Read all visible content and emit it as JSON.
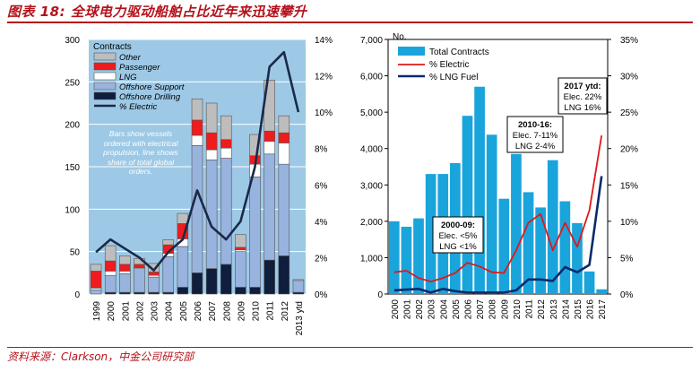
{
  "figure": {
    "title": "图表 18: 全球电力驱动船舶占比近年来迅速攀升",
    "source": "资料来源：Clarkson，中金公司研究部"
  },
  "colors": {
    "title_red": "#b5121b",
    "panel_blue": "#9dc9e6",
    "other": "#bdbdbd",
    "passenger": "#ee1c1c",
    "lng": "#ffffff",
    "offshore_support": "#98b3de",
    "offshore_drilling": "#0e1e3c",
    "electric_line": "#1a2a4a",
    "right_bar": "#1aa4dc",
    "right_electric": "#e01818",
    "right_lng": "#0a2a6a"
  },
  "chart_data": [
    {
      "type": "bar",
      "stacked": true,
      "background": "light-blue",
      "categories": [
        "1999",
        "2000",
        "2001",
        "2002",
        "2003",
        "2004",
        "2005",
        "2006",
        "2007",
        "2008",
        "2009",
        "2010",
        "2011",
        "2012",
        "2013 ytd"
      ],
      "left_axis_label": "Contracts",
      "ylim": [
        0,
        300
      ],
      "yticks": [
        "0",
        "50",
        "100",
        "150",
        "200",
        "250",
        "300"
      ],
      "y2lim": [
        0,
        14
      ],
      "y2ticks": [
        "0%",
        "2%",
        "4%",
        "6%",
        "8%",
        "10%",
        "12%",
        "14%"
      ],
      "series": [
        {
          "name": "Offshore Drilling",
          "values": [
            0,
            2,
            2,
            2,
            2,
            2,
            8,
            25,
            30,
            35,
            8,
            8,
            40,
            45,
            2
          ]
        },
        {
          "name": "Offshore Support",
          "values": [
            5,
            20,
            22,
            28,
            18,
            42,
            48,
            150,
            128,
            125,
            42,
            130,
            125,
            108,
            14
          ]
        },
        {
          "name": "LNG",
          "values": [
            2,
            5,
            3,
            1,
            2,
            4,
            9,
            12,
            12,
            12,
            2,
            15,
            15,
            25,
            1
          ]
        },
        {
          "name": "Passenger",
          "values": [
            20,
            12,
            8,
            4,
            4,
            10,
            18,
            18,
            20,
            10,
            3,
            10,
            12,
            12,
            0
          ]
        },
        {
          "name": "Other",
          "values": [
            8,
            18,
            10,
            7,
            10,
            6,
            12,
            25,
            35,
            28,
            15,
            25,
            60,
            20,
            0
          ]
        }
      ],
      "line": {
        "name": "% Electric",
        "values": [
          2.3,
          3.0,
          2.5,
          2.0,
          1.3,
          2.3,
          3.0,
          5.7,
          3.7,
          3.0,
          4.0,
          7.0,
          12.5,
          13.3,
          10.0
        ]
      },
      "annotation": "Bars show vessels ordered with electrical propulsion, line shows share of total global orders.",
      "legend_position": "top-left"
    },
    {
      "type": "bar",
      "categories": [
        "2000",
        "2001",
        "2002",
        "2003",
        "2004",
        "2005",
        "2006",
        "2007",
        "2008",
        "2009",
        "2010",
        "2011",
        "2012",
        "2013",
        "2014",
        "2015",
        "2016",
        "2017"
      ],
      "left_axis_label": "No.",
      "ylim": [
        0,
        7000
      ],
      "yticks": [
        "0",
        "1,000",
        "2,000",
        "3,000",
        "4,000",
        "5,000",
        "6,000",
        "7,000"
      ],
      "y2lim": [
        0,
        35
      ],
      "y2ticks": [
        "0%",
        "5%",
        "10%",
        "15%",
        "20%",
        "25%",
        "30%",
        "35%"
      ],
      "series": [
        {
          "name": "Total Contracts",
          "values": [
            2000,
            1850,
            2080,
            3300,
            3300,
            3600,
            4900,
            5700,
            4380,
            2620,
            3850,
            2800,
            2380,
            3680,
            2550,
            1950,
            620,
            130
          ]
        }
      ],
      "lines": [
        {
          "name": "% Electric",
          "values": [
            3.0,
            3.2,
            2.2,
            1.7,
            2.2,
            2.9,
            4.3,
            3.8,
            3.0,
            2.9,
            6.0,
            9.8,
            11.0,
            6.0,
            9.8,
            6.5,
            11.5,
            21.8
          ]
        },
        {
          "name": "% LNG Fuel",
          "values": [
            0.5,
            0.6,
            0.7,
            0.2,
            0.7,
            0.4,
            0.2,
            0.2,
            0.2,
            0.2,
            0.5,
            2.0,
            2.0,
            1.8,
            3.7,
            3.0,
            4.0,
            16.2
          ]
        }
      ],
      "annotations": [
        {
          "title": "2000-09:",
          "lines": [
            "Elec. <5%",
            "LNG <1%"
          ]
        },
        {
          "title": "2010-16:",
          "lines": [
            "Elec. 7-11%",
            "LNG 2-4%"
          ]
        },
        {
          "title": "2017 ytd:",
          "lines": [
            "Elec. 22%",
            "LNG 16%"
          ]
        }
      ],
      "legend_position": "top-left"
    }
  ]
}
